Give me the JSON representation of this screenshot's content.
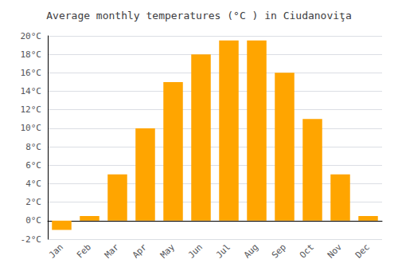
{
  "chart_data": {
    "type": "bar",
    "title": "Average monthly temperatures (°C ) in Ciudanoviţa",
    "categories": [
      "Jan",
      "Feb",
      "Mar",
      "Apr",
      "May",
      "Jun",
      "Jul",
      "Aug",
      "Sep",
      "Oct",
      "Nov",
      "Dec"
    ],
    "values": [
      -1.0,
      0.5,
      5.0,
      10.0,
      15.0,
      18.0,
      19.5,
      19.5,
      16.0,
      11.0,
      5.0,
      0.5
    ],
    "color": "#FFA500",
    "ylim": [
      -2,
      20
    ],
    "yticks": [
      {
        "value": -2,
        "label": "-2°C"
      },
      {
        "value": 0,
        "label": "0°C"
      },
      {
        "value": 2,
        "label": "2°C"
      },
      {
        "value": 4,
        "label": "4°C"
      },
      {
        "value": 6,
        "label": "6°C"
      },
      {
        "value": 8,
        "label": "8°C"
      },
      {
        "value": 10,
        "label": "10°C"
      },
      {
        "value": 12,
        "label": "12°C"
      },
      {
        "value": 14,
        "label": "14°C"
      },
      {
        "value": 16,
        "label": "16°C"
      },
      {
        "value": 18,
        "label": "18°C"
      },
      {
        "value": 20,
        "label": "20°C"
      }
    ],
    "grid": true
  }
}
